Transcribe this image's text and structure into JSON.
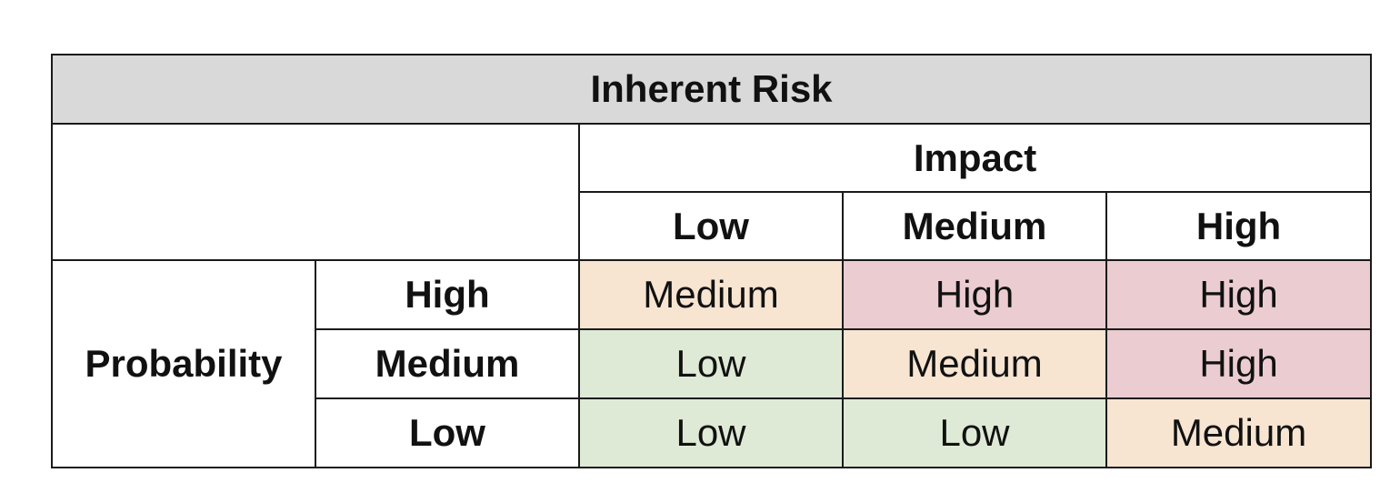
{
  "title": "Inherent Risk",
  "impact": {
    "label": "Impact",
    "levels": [
      "Low",
      "Medium",
      "High"
    ]
  },
  "probability": {
    "label": "Probability",
    "levels": [
      "High",
      "Medium",
      "Low"
    ]
  },
  "matrix": [
    [
      "Medium",
      "High",
      "High"
    ],
    [
      "Low",
      "Medium",
      "High"
    ],
    [
      "Low",
      "Low",
      "Medium"
    ]
  ],
  "colors": {
    "title_bg": "#d9d9d9",
    "Low": "#dfead6",
    "Medium": "#f7e5d1",
    "High": "#ebccd1",
    "border": "#1a1a1a"
  }
}
